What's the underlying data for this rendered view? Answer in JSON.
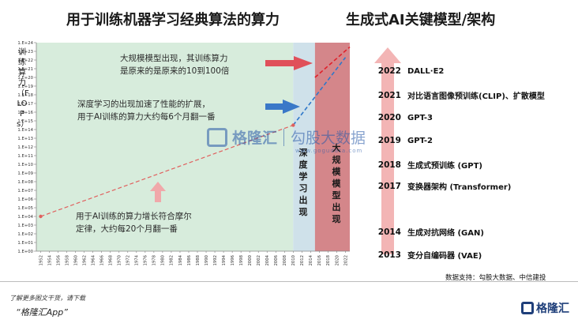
{
  "titles": {
    "left": "用于训练机器学习经典算法的算力",
    "right": "生成式AI关键模型/架构"
  },
  "chart_data": {
    "type": "line",
    "ylabel": "训练算力（FLOPs）",
    "y_ticks": [
      "1.E+00",
      "1.E+01",
      "1.E+02",
      "1.E+03",
      "1.E+04",
      "1.E+05",
      "1.E+06",
      "1.E+07",
      "1.E+08",
      "1.E+09",
      "1.E+10",
      "1.E+11",
      "1.E+12",
      "1.E+13",
      "1.E+14",
      "1.E+15",
      "1.E+16",
      "1.E+17",
      "1.E+18",
      "1.E+19",
      "1.E+20",
      "1.E+21",
      "1.E+22",
      "1.E+23",
      "1.E+24"
    ],
    "x_ticks": [
      "1952",
      "1954",
      "1956",
      "1958",
      "1960",
      "1962",
      "1964",
      "1966",
      "1968",
      "1970",
      "1972",
      "1974",
      "1976",
      "1978",
      "1980",
      "1982",
      "1984",
      "1986",
      "1988",
      "1990",
      "1992",
      "1994",
      "1996",
      "1998",
      "2000",
      "2002",
      "2004",
      "2006",
      "2008",
      "2010",
      "2012",
      "2014",
      "2016",
      "2018",
      "2020",
      "2022"
    ],
    "xlim": [
      1951,
      2023
    ],
    "ylim_log10": [
      0,
      24
    ],
    "series": [
      {
        "x": [
          1952,
          2010
        ],
        "y_log10": [
          4,
          14.5
        ]
      },
      {
        "x": [
          2010,
          2022
        ],
        "y_log10": [
          14.5,
          22.3
        ]
      },
      {
        "x": [
          2015,
          2023
        ],
        "y_log10": [
          20.0,
          23.5
        ]
      }
    ],
    "regions": [
      {
        "label": "深度学习出现",
        "x": [
          2010,
          2015
        ],
        "color": "#cfe1ea"
      },
      {
        "label": "大规模模型出现",
        "x": [
          2015,
          2023
        ],
        "color": "#cd7176"
      }
    ],
    "annotations": [
      {
        "line1": "大规模模型出现，其训练算力",
        "line2": "是原来的是原来的10到100倍"
      },
      {
        "line1": "深度学习的出现加速了性能的扩展，",
        "line2": "用于AI训练的算力大约每6个月翻一番"
      },
      {
        "line1": "用于AI训练的算力增长符合摩尔",
        "line2": "定律，大约每20个月翻一番"
      }
    ]
  },
  "timeline": [
    {
      "year": "2022",
      "name": "DALL·E2"
    },
    {
      "year": "2021",
      "name": "对比语言图像预训练(CLIP)、扩散模型"
    },
    {
      "year": "2020",
      "name": "GPT-3"
    },
    {
      "year": "2019",
      "name": "GPT-2"
    },
    {
      "year": "2018",
      "name": "生成式预训练 (GPT)"
    },
    {
      "year": "2017",
      "name": "变换器架构 (Transformer)"
    },
    {
      "year": "2014",
      "name": "生成对抗网络 (GAN)"
    },
    {
      "year": "2013",
      "name": "变分自编码器 (VAE)"
    }
  ],
  "watermark": {
    "left": "格隆汇",
    "right": "勾股大数据",
    "url": "www.gogudata.com"
  },
  "source": "数据支持：勾股大数据、中信建投",
  "footer": {
    "line1": "了解更多图文干货，请下载",
    "line2": "“格隆汇App”",
    "logo": "格隆汇"
  },
  "colors": {
    "green_bg": "#d7ecdc",
    "blue_bg": "#cfe1ea",
    "red_region": "#cd7176",
    "red_arrow": "#e0505a",
    "blue_arrow": "#3a78c8",
    "trend_red": "#e0605e",
    "trend_blue": "#2f77c9"
  }
}
